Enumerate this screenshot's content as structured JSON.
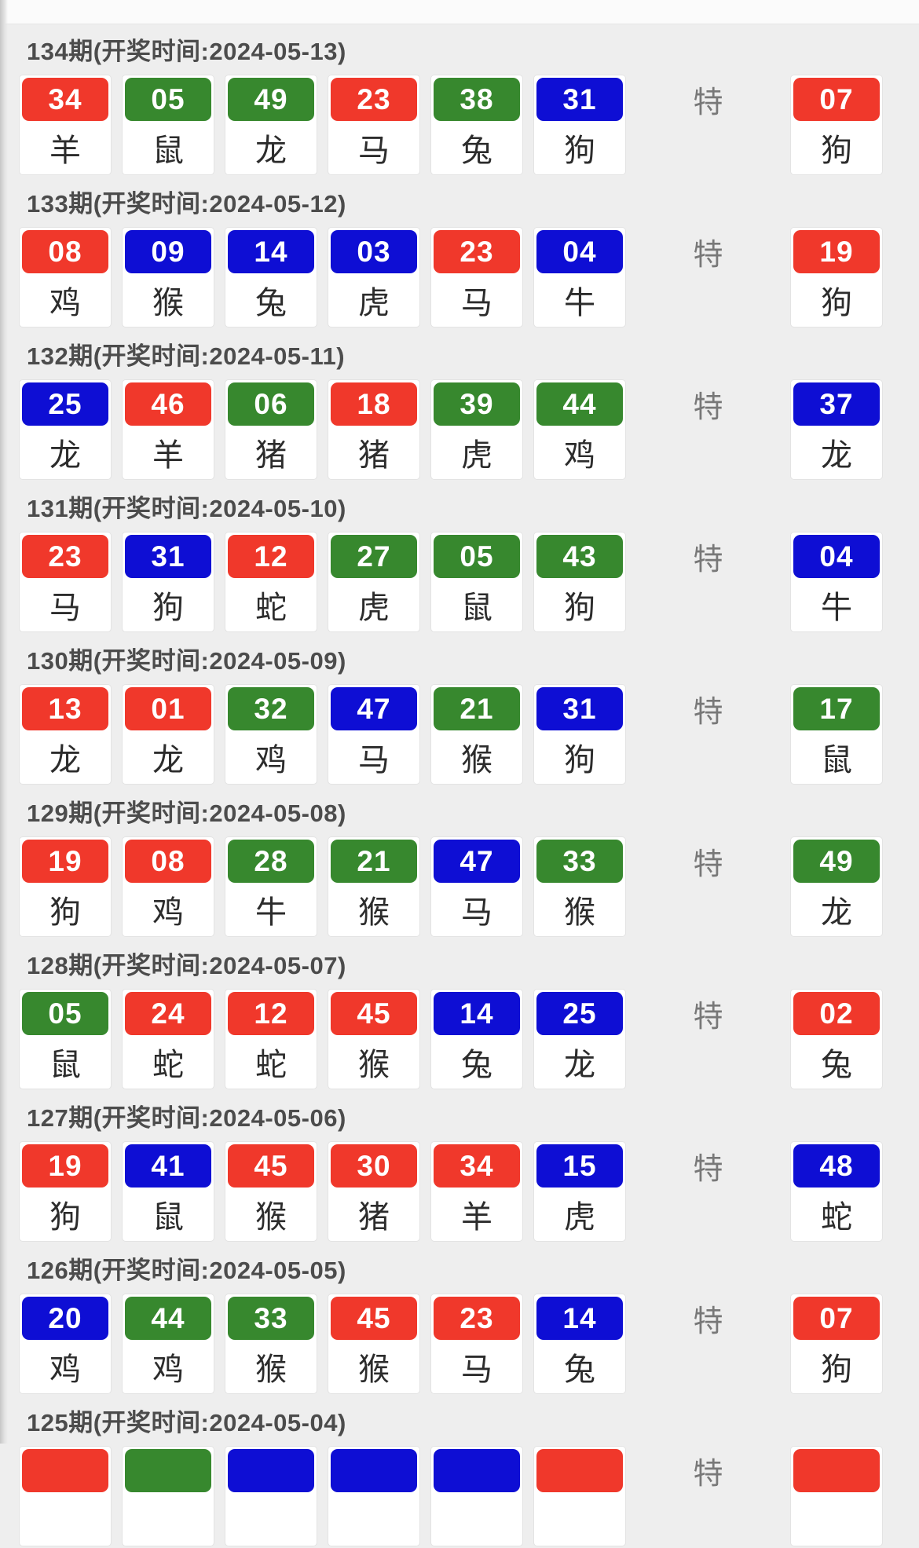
{
  "page": {
    "special_label": "特"
  },
  "colors": {
    "red": "#f0382b",
    "green": "#37882e",
    "blue": "#0e0ed4"
  },
  "text_colors": {
    "header": "#4c4c4c",
    "special_marker": "#787878",
    "zodiac": "#2c2c2c"
  },
  "draws": [
    {
      "header": "134期(开奖时间:2024-05-13)",
      "numbers": [
        {
          "num": "34",
          "color": "red",
          "zodiac": "羊"
        },
        {
          "num": "05",
          "color": "green",
          "zodiac": "鼠"
        },
        {
          "num": "49",
          "color": "green",
          "zodiac": "龙"
        },
        {
          "num": "23",
          "color": "red",
          "zodiac": "马"
        },
        {
          "num": "38",
          "color": "green",
          "zodiac": "兔"
        },
        {
          "num": "31",
          "color": "blue",
          "zodiac": "狗"
        }
      ],
      "special": {
        "num": "07",
        "color": "red",
        "zodiac": "狗"
      }
    },
    {
      "header": "133期(开奖时间:2024-05-12)",
      "numbers": [
        {
          "num": "08",
          "color": "red",
          "zodiac": "鸡"
        },
        {
          "num": "09",
          "color": "blue",
          "zodiac": "猴"
        },
        {
          "num": "14",
          "color": "blue",
          "zodiac": "兔"
        },
        {
          "num": "03",
          "color": "blue",
          "zodiac": "虎"
        },
        {
          "num": "23",
          "color": "red",
          "zodiac": "马"
        },
        {
          "num": "04",
          "color": "blue",
          "zodiac": "牛"
        }
      ],
      "special": {
        "num": "19",
        "color": "red",
        "zodiac": "狗"
      }
    },
    {
      "header": "132期(开奖时间:2024-05-11)",
      "numbers": [
        {
          "num": "25",
          "color": "blue",
          "zodiac": "龙"
        },
        {
          "num": "46",
          "color": "red",
          "zodiac": "羊"
        },
        {
          "num": "06",
          "color": "green",
          "zodiac": "猪"
        },
        {
          "num": "18",
          "color": "red",
          "zodiac": "猪"
        },
        {
          "num": "39",
          "color": "green",
          "zodiac": "虎"
        },
        {
          "num": "44",
          "color": "green",
          "zodiac": "鸡"
        }
      ],
      "special": {
        "num": "37",
        "color": "blue",
        "zodiac": "龙"
      }
    },
    {
      "header": "131期(开奖时间:2024-05-10)",
      "numbers": [
        {
          "num": "23",
          "color": "red",
          "zodiac": "马"
        },
        {
          "num": "31",
          "color": "blue",
          "zodiac": "狗"
        },
        {
          "num": "12",
          "color": "red",
          "zodiac": "蛇"
        },
        {
          "num": "27",
          "color": "green",
          "zodiac": "虎"
        },
        {
          "num": "05",
          "color": "green",
          "zodiac": "鼠"
        },
        {
          "num": "43",
          "color": "green",
          "zodiac": "狗"
        }
      ],
      "special": {
        "num": "04",
        "color": "blue",
        "zodiac": "牛"
      }
    },
    {
      "header": "130期(开奖时间:2024-05-09)",
      "numbers": [
        {
          "num": "13",
          "color": "red",
          "zodiac": "龙"
        },
        {
          "num": "01",
          "color": "red",
          "zodiac": "龙"
        },
        {
          "num": "32",
          "color": "green",
          "zodiac": "鸡"
        },
        {
          "num": "47",
          "color": "blue",
          "zodiac": "马"
        },
        {
          "num": "21",
          "color": "green",
          "zodiac": "猴"
        },
        {
          "num": "31",
          "color": "blue",
          "zodiac": "狗"
        }
      ],
      "special": {
        "num": "17",
        "color": "green",
        "zodiac": "鼠"
      }
    },
    {
      "header": "129期(开奖时间:2024-05-08)",
      "numbers": [
        {
          "num": "19",
          "color": "red",
          "zodiac": "狗"
        },
        {
          "num": "08",
          "color": "red",
          "zodiac": "鸡"
        },
        {
          "num": "28",
          "color": "green",
          "zodiac": "牛"
        },
        {
          "num": "21",
          "color": "green",
          "zodiac": "猴"
        },
        {
          "num": "47",
          "color": "blue",
          "zodiac": "马"
        },
        {
          "num": "33",
          "color": "green",
          "zodiac": "猴"
        }
      ],
      "special": {
        "num": "49",
        "color": "green",
        "zodiac": "龙"
      }
    },
    {
      "header": "128期(开奖时间:2024-05-07)",
      "numbers": [
        {
          "num": "05",
          "color": "green",
          "zodiac": "鼠"
        },
        {
          "num": "24",
          "color": "red",
          "zodiac": "蛇"
        },
        {
          "num": "12",
          "color": "red",
          "zodiac": "蛇"
        },
        {
          "num": "45",
          "color": "red",
          "zodiac": "猴"
        },
        {
          "num": "14",
          "color": "blue",
          "zodiac": "兔"
        },
        {
          "num": "25",
          "color": "blue",
          "zodiac": "龙"
        }
      ],
      "special": {
        "num": "02",
        "color": "red",
        "zodiac": "兔"
      }
    },
    {
      "header": "127期(开奖时间:2024-05-06)",
      "numbers": [
        {
          "num": "19",
          "color": "red",
          "zodiac": "狗"
        },
        {
          "num": "41",
          "color": "blue",
          "zodiac": "鼠"
        },
        {
          "num": "45",
          "color": "red",
          "zodiac": "猴"
        },
        {
          "num": "30",
          "color": "red",
          "zodiac": "猪"
        },
        {
          "num": "34",
          "color": "red",
          "zodiac": "羊"
        },
        {
          "num": "15",
          "color": "blue",
          "zodiac": "虎"
        }
      ],
      "special": {
        "num": "48",
        "color": "blue",
        "zodiac": "蛇"
      }
    },
    {
      "header": "126期(开奖时间:2024-05-05)",
      "numbers": [
        {
          "num": "20",
          "color": "blue",
          "zodiac": "鸡"
        },
        {
          "num": "44",
          "color": "green",
          "zodiac": "鸡"
        },
        {
          "num": "33",
          "color": "green",
          "zodiac": "猴"
        },
        {
          "num": "45",
          "color": "red",
          "zodiac": "猴"
        },
        {
          "num": "23",
          "color": "red",
          "zodiac": "马"
        },
        {
          "num": "14",
          "color": "blue",
          "zodiac": "兔"
        }
      ],
      "special": {
        "num": "07",
        "color": "red",
        "zodiac": "狗"
      }
    },
    {
      "header": "125期(开奖时间:2024-05-04)",
      "numbers": [
        {
          "num": "",
          "color": "red",
          "zodiac": ""
        },
        {
          "num": "",
          "color": "green",
          "zodiac": ""
        },
        {
          "num": "",
          "color": "blue",
          "zodiac": ""
        },
        {
          "num": "",
          "color": "blue",
          "zodiac": ""
        },
        {
          "num": "",
          "color": "blue",
          "zodiac": ""
        },
        {
          "num": "",
          "color": "red",
          "zodiac": ""
        }
      ],
      "special": {
        "num": "",
        "color": "red",
        "zodiac": ""
      }
    }
  ]
}
